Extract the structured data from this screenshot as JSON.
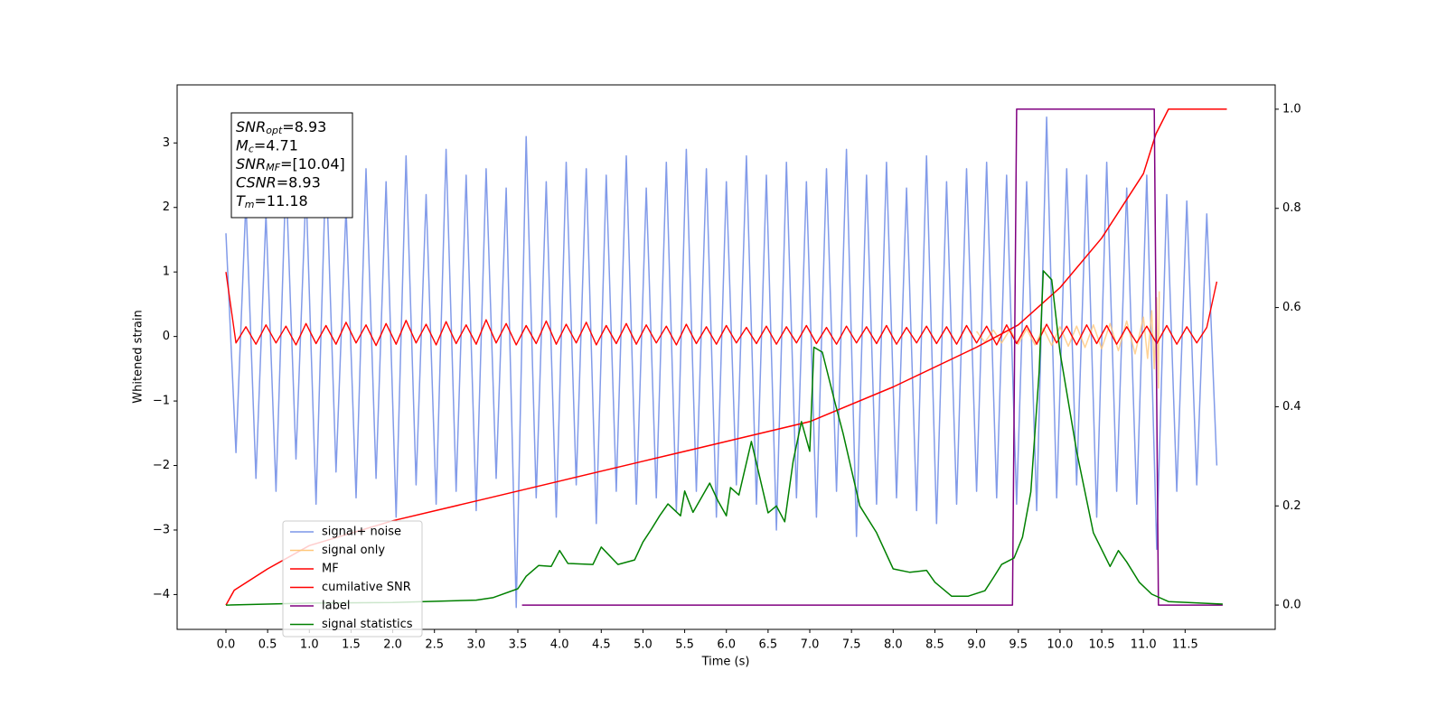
{
  "chart_data": {
    "type": "line",
    "xlabel": "Time (s)",
    "ylabel": "Whitened strain",
    "xlim": [
      -0.585,
      12.58
    ],
    "ylim": [
      -4.54,
      3.9
    ],
    "y2lim": [
      -0.049,
      1.049
    ],
    "xticks": [
      {
        "value": 0,
        "label": "0.0"
      },
      0.5,
      {
        "value": 1,
        "label": "1.0"
      },
      1.5,
      {
        "value": 2,
        "label": "2.0"
      },
      2.5,
      {
        "value": 3,
        "label": "3.0"
      },
      3.5,
      {
        "value": 4,
        "label": "4.0"
      },
      4.5,
      {
        "value": 5,
        "label": "5.0"
      },
      5.5,
      {
        "value": 6,
        "label": "6.0"
      },
      6.5,
      {
        "value": 7,
        "label": "7.0"
      },
      7.5,
      {
        "value": 8,
        "label": "8.0"
      },
      8.5,
      {
        "value": 9,
        "label": "9.0"
      },
      9.5,
      {
        "value": 10,
        "label": "10.0"
      },
      10.5,
      {
        "value": 11,
        "label": "11.0"
      },
      11.5
    ],
    "yticks": [
      {
        "value": -4,
        "label": "−4"
      },
      {
        "value": -3,
        "label": "−3"
      },
      {
        "value": -2,
        "label": "−2"
      },
      {
        "value": -1,
        "label": "−1"
      },
      0,
      1,
      2,
      3
    ],
    "y2ticks": [
      {
        "value": 0,
        "label": "0.0"
      },
      0.2,
      0.4,
      0.6,
      0.8,
      {
        "value": 1,
        "label": "1.0"
      }
    ],
    "legend": "lower left",
    "annotation": [
      {
        "name": "SNR",
        "sub": "opt",
        "text": "=8.93"
      },
      {
        "name": "M",
        "sub": "c",
        "text": "=4.71"
      },
      {
        "name": "SNR",
        "sub": "MF",
        "text": "=[10.04]"
      },
      {
        "name": "CSNR",
        "text": "=8.93"
      },
      {
        "name": "T",
        "sub": "m",
        "text": "=11.18"
      }
    ],
    "x": [
      0,
      0.12,
      0.24,
      0.36,
      0.48,
      0.6,
      0.72,
      0.84,
      0.96,
      1.08,
      1.2,
      1.32,
      1.44,
      1.56,
      1.68,
      1.8,
      1.92,
      2.04,
      2.16,
      2.28,
      2.4,
      2.52,
      2.64,
      2.76,
      2.88,
      3.0,
      3.12,
      3.24,
      3.36,
      3.48,
      3.6,
      3.72,
      3.84,
      3.96,
      4.08,
      4.2,
      4.32,
      4.44,
      4.56,
      4.68,
      4.8,
      4.92,
      5.04,
      5.16,
      5.28,
      5.4,
      5.52,
      5.64,
      5.76,
      5.88,
      6.0,
      6.12,
      6.24,
      6.36,
      6.48,
      6.6,
      6.72,
      6.84,
      6.96,
      7.08,
      7.2,
      7.32,
      7.44,
      7.56,
      7.68,
      7.8,
      7.92,
      8.04,
      8.16,
      8.28,
      8.4,
      8.52,
      8.64,
      8.76,
      8.88,
      9.0,
      9.12,
      9.24,
      9.36,
      9.48,
      9.6,
      9.72,
      9.84,
      9.96,
      10.08,
      10.2,
      10.32,
      10.44,
      10.56,
      10.68,
      10.8,
      10.92,
      11.04,
      11.16,
      11.28,
      11.4,
      11.52,
      11.64,
      11.76,
      11.88
    ],
    "series": [
      {
        "name": "signal+ noise",
        "color": "#7b96e8",
        "values": [
          1.6,
          -1.8,
          2.1,
          -2.2,
          1.9,
          -2.4,
          2.5,
          -1.9,
          2.3,
          -2.6,
          2.7,
          -2.1,
          2.0,
          -2.5,
          2.6,
          -2.2,
          2.4,
          -2.8,
          2.8,
          -2.3,
          2.2,
          -2.6,
          2.9,
          -2.4,
          2.5,
          -2.7,
          2.6,
          -2.2,
          2.3,
          -4.2,
          3.1,
          -2.5,
          2.4,
          -2.8,
          2.7,
          -2.3,
          2.6,
          -2.9,
          2.5,
          -2.4,
          2.8,
          -2.6,
          2.3,
          -2.5,
          2.7,
          -2.7,
          2.9,
          -2.4,
          2.6,
          -2.8,
          2.4,
          -2.3,
          2.8,
          -2.6,
          2.5,
          -3.0,
          2.7,
          -2.5,
          2.4,
          -2.8,
          2.6,
          -2.4,
          2.9,
          -3.1,
          2.5,
          -2.6,
          2.7,
          -2.5,
          2.3,
          -2.7,
          2.8,
          -2.9,
          2.4,
          -2.6,
          2.6,
          -2.4,
          2.7,
          -2.5,
          2.5,
          -2.6,
          2.4,
          -2.7,
          3.4,
          -2.5,
          2.6,
          -2.3,
          2.5,
          -2.8,
          2.7,
          -2.4,
          2.3,
          -2.6,
          2.5,
          -3.3,
          2.2,
          -2.4,
          2.1,
          -2.3,
          1.9,
          -2.0
        ]
      },
      {
        "name": "signal only",
        "color": "#ffc77a",
        "x": [
          9.0,
          9.1,
          9.2,
          9.3,
          9.4,
          9.5,
          9.6,
          9.7,
          9.8,
          9.9,
          10.0,
          10.1,
          10.2,
          10.3,
          10.4,
          10.5,
          10.6,
          10.7,
          10.8,
          10.9,
          11.0,
          11.05,
          11.1,
          11.13,
          11.16,
          11.18,
          11.19
        ],
        "values": [
          0.08,
          -0.09,
          0.1,
          -0.1,
          0.11,
          -0.12,
          0.12,
          -0.13,
          0.13,
          -0.14,
          0.15,
          -0.15,
          0.16,
          -0.17,
          0.18,
          -0.19,
          0.2,
          -0.22,
          0.24,
          -0.27,
          0.3,
          -0.34,
          0.4,
          -0.5,
          0.6,
          -0.8,
          0.7
        ]
      },
      {
        "name": "MF",
        "color": "#ff0000",
        "values": [
          1.0,
          -0.1,
          0.15,
          -0.12,
          0.18,
          -0.1,
          0.16,
          -0.13,
          0.2,
          -0.11,
          0.17,
          -0.12,
          0.22,
          -0.1,
          0.18,
          -0.14,
          0.2,
          -0.12,
          0.25,
          -0.1,
          0.19,
          -0.13,
          0.23,
          -0.11,
          0.18,
          -0.12,
          0.26,
          -0.1,
          0.2,
          -0.13,
          0.17,
          -0.11,
          0.24,
          -0.12,
          0.19,
          -0.1,
          0.22,
          -0.13,
          0.17,
          -0.11,
          0.2,
          -0.12,
          0.18,
          -0.1,
          0.16,
          -0.13,
          0.19,
          -0.11,
          0.15,
          -0.12,
          0.17,
          -0.1,
          0.14,
          -0.11,
          0.16,
          -0.12,
          0.15,
          -0.1,
          0.17,
          -0.11,
          0.14,
          -0.12,
          0.16,
          -0.1,
          0.15,
          -0.11,
          0.17,
          -0.12,
          0.14,
          -0.1,
          0.16,
          -0.11,
          0.15,
          -0.12,
          0.17,
          -0.1,
          0.16,
          -0.13,
          0.18,
          -0.11,
          0.17,
          -0.12,
          0.19,
          -0.1,
          0.16,
          -0.13,
          0.18,
          -0.11,
          0.17,
          -0.12,
          0.15,
          -0.1,
          0.16,
          -0.11,
          0.17,
          -0.12,
          0.15,
          -0.1,
          0.14,
          0.85
        ]
      },
      {
        "name": "cumilative SNR",
        "color": "#ff0000",
        "axis": "y2",
        "x": [
          0,
          0.1,
          0.5,
          1,
          2,
          3,
          4,
          5,
          6,
          7,
          8,
          9,
          9.5,
          10,
          10.5,
          11,
          11.15,
          11.3,
          12
        ],
        "values": [
          0,
          0.03,
          0.073,
          0.12,
          0.17,
          0.21,
          0.25,
          0.29,
          0.33,
          0.37,
          0.44,
          0.52,
          0.565,
          0.64,
          0.74,
          0.87,
          0.95,
          1.0,
          1.0
        ]
      },
      {
        "name": "label",
        "color": "#800080",
        "axis": "y2",
        "x": [
          3.55,
          9.43,
          9.48,
          11.13,
          11.18,
          11.95
        ],
        "values": [
          0,
          0,
          1,
          1,
          0,
          0
        ]
      },
      {
        "name": "signal statistics",
        "color": "#008000",
        "axis": "y2",
        "x": [
          0,
          1,
          2,
          3,
          3.2,
          3.5,
          3.6,
          3.75,
          3.9,
          4.0,
          4.1,
          4.4,
          4.5,
          4.7,
          4.9,
          5.0,
          5.1,
          5.2,
          5.3,
          5.45,
          5.5,
          5.6,
          5.8,
          5.9,
          6.0,
          6.05,
          6.15,
          6.3,
          6.5,
          6.6,
          6.7,
          6.8,
          6.9,
          7.0,
          7.05,
          7.15,
          7.3,
          7.4,
          7.6,
          7.8,
          8.0,
          8.2,
          8.4,
          8.5,
          8.7,
          8.9,
          9.1,
          9.2,
          9.3,
          9.45,
          9.55,
          9.65,
          9.75,
          9.8,
          9.9,
          10.0,
          10.2,
          10.4,
          10.6,
          10.7,
          10.8,
          10.95,
          11.1,
          11.3,
          11.95
        ],
        "values": [
          0,
          0.004,
          0.005,
          0.01,
          0.015,
          0.033,
          0.058,
          0.08,
          0.078,
          0.11,
          0.084,
          0.082,
          0.117,
          0.082,
          0.091,
          0.127,
          0.153,
          0.18,
          0.204,
          0.18,
          0.23,
          0.187,
          0.246,
          0.21,
          0.18,
          0.237,
          0.222,
          0.33,
          0.186,
          0.2,
          0.168,
          0.29,
          0.37,
          0.31,
          0.52,
          0.51,
          0.41,
          0.346,
          0.2,
          0.146,
          0.073,
          0.066,
          0.07,
          0.046,
          0.018,
          0.018,
          0.029,
          0.055,
          0.082,
          0.095,
          0.137,
          0.228,
          0.47,
          0.674,
          0.656,
          0.51,
          0.31,
          0.146,
          0.078,
          0.11,
          0.087,
          0.046,
          0.022,
          0.007,
          0.002
        ]
      }
    ]
  }
}
